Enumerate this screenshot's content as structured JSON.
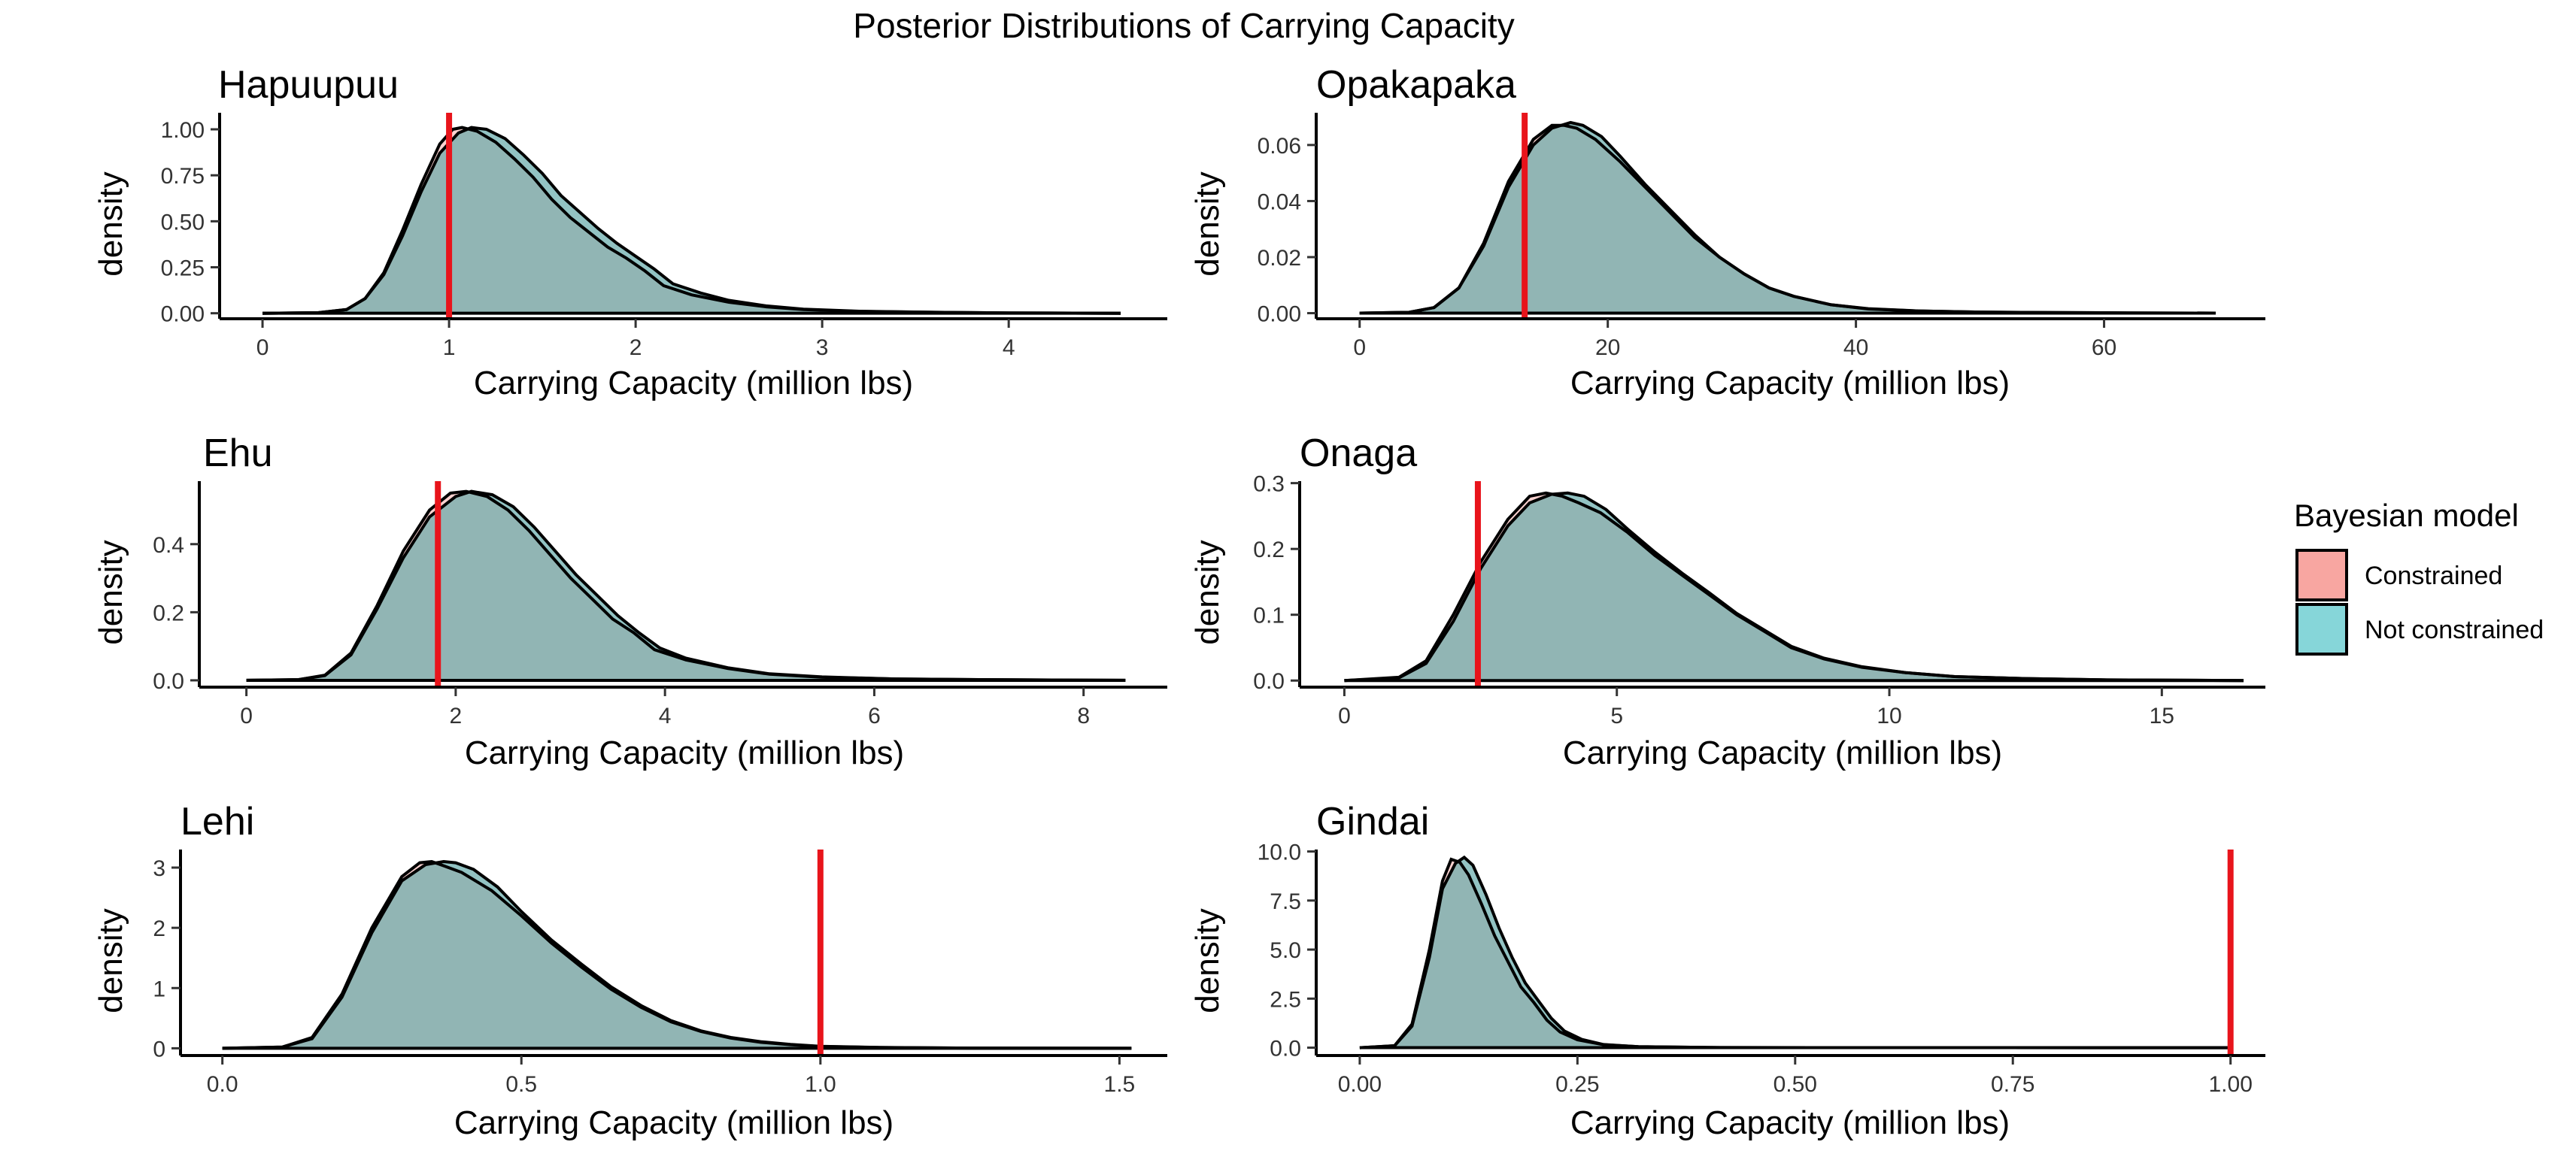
{
  "title": "Posterior Distributions of Carrying Capacity",
  "legend": {
    "title": "Bayesian model",
    "items": [
      {
        "label": "Constrained",
        "color": "#F8A6A1"
      },
      {
        "label": "Not constrained",
        "color": "#86D6D9"
      }
    ]
  },
  "colors": {
    "overlap_fill": "#86B1B0",
    "reference_line": "#E8141B",
    "curve": "#000000"
  },
  "chart_data": [
    {
      "type": "area",
      "title": "Hapuupuu",
      "xlabel": "Carrying Capacity (million lbs)",
      "ylabel": "density",
      "xlim": [
        -0.23,
        4.85
      ],
      "ylim": [
        -0.03,
        1.09
      ],
      "xticks": [
        0,
        1,
        2,
        3,
        4
      ],
      "xtick_labels": [
        "0",
        "1",
        "2",
        "3",
        "4"
      ],
      "yticks": [
        0,
        0.25,
        0.5,
        0.75,
        1.0
      ],
      "ytick_labels": [
        "0.00",
        "0.25",
        "0.50",
        "0.75",
        "1.00"
      ],
      "reference_line": 1.0,
      "series": [
        {
          "name": "Constrained",
          "x": [
            0,
            0.3,
            0.45,
            0.55,
            0.65,
            0.75,
            0.85,
            0.95,
            1.02,
            1.07,
            1.15,
            1.25,
            1.35,
            1.45,
            1.55,
            1.65,
            1.75,
            1.85,
            1.95,
            2.05,
            2.15,
            2.3,
            2.5,
            2.7,
            2.9,
            3.2,
            3.6,
            4.0,
            4.6
          ],
          "y": [
            0,
            0.003,
            0.02,
            0.08,
            0.22,
            0.45,
            0.7,
            0.92,
            1.0,
            1.01,
            0.99,
            0.93,
            0.84,
            0.74,
            0.62,
            0.52,
            0.44,
            0.36,
            0.3,
            0.23,
            0.15,
            0.1,
            0.06,
            0.035,
            0.02,
            0.01,
            0.005,
            0.002,
            0
          ]
        },
        {
          "name": "Not constrained",
          "x": [
            0,
            0.3,
            0.45,
            0.55,
            0.65,
            0.75,
            0.85,
            0.95,
            1.05,
            1.12,
            1.2,
            1.3,
            1.4,
            1.5,
            1.6,
            1.7,
            1.8,
            1.9,
            2.0,
            2.1,
            2.2,
            2.35,
            2.5,
            2.7,
            2.9,
            3.2,
            3.6,
            4.0,
            4.6
          ],
          "y": [
            0,
            0.003,
            0.02,
            0.08,
            0.21,
            0.42,
            0.66,
            0.87,
            0.98,
            1.01,
            1.0,
            0.95,
            0.86,
            0.76,
            0.64,
            0.55,
            0.46,
            0.38,
            0.31,
            0.24,
            0.16,
            0.11,
            0.07,
            0.04,
            0.022,
            0.011,
            0.005,
            0.002,
            0
          ]
        }
      ]
    },
    {
      "type": "area",
      "title": "Opakapaka",
      "xlabel": "Carrying Capacity (million lbs)",
      "ylabel": "density",
      "xlim": [
        -3.5,
        73
      ],
      "ylim": [
        -0.002,
        0.0715
      ],
      "xticks": [
        0,
        20,
        40,
        60
      ],
      "xtick_labels": [
        "0",
        "20",
        "40",
        "60"
      ],
      "yticks": [
        0,
        0.02,
        0.04,
        0.06
      ],
      "ytick_labels": [
        "0.00",
        "0.02",
        "0.04",
        "0.06"
      ],
      "reference_line": 13.3,
      "series": [
        {
          "name": "Constrained",
          "x": [
            0,
            4,
            6,
            8,
            10,
            12,
            14,
            15.5,
            16.5,
            17.5,
            19,
            21,
            23,
            25,
            27,
            29,
            31,
            33,
            35,
            38,
            41,
            45,
            50,
            56,
            62,
            69
          ],
          "y": [
            0,
            0.0003,
            0.002,
            0.009,
            0.025,
            0.047,
            0.062,
            0.067,
            0.067,
            0.066,
            0.062,
            0.054,
            0.045,
            0.036,
            0.027,
            0.02,
            0.014,
            0.009,
            0.006,
            0.003,
            0.0015,
            0.0008,
            0.0004,
            0.0002,
            0.0001,
            0
          ]
        },
        {
          "name": "Not constrained",
          "x": [
            0,
            4,
            6,
            8,
            10,
            12,
            14,
            15.5,
            17,
            18,
            19.5,
            21,
            23,
            25,
            27,
            29,
            31,
            33,
            35,
            38,
            41,
            45,
            50,
            56,
            62,
            69
          ],
          "y": [
            0,
            0.0003,
            0.002,
            0.009,
            0.024,
            0.045,
            0.06,
            0.066,
            0.068,
            0.067,
            0.063,
            0.056,
            0.046,
            0.037,
            0.028,
            0.02,
            0.014,
            0.009,
            0.006,
            0.003,
            0.0016,
            0.0008,
            0.0004,
            0.0002,
            0.0001,
            0
          ]
        }
      ]
    },
    {
      "type": "area",
      "title": "Ehu",
      "xlabel": "Carrying Capacity (million lbs)",
      "ylabel": "density",
      "xlim": [
        -0.45,
        8.8
      ],
      "ylim": [
        -0.02,
        0.585
      ],
      "xticks": [
        0,
        2,
        4,
        6,
        8
      ],
      "xtick_labels": [
        "0",
        "2",
        "4",
        "6",
        "8"
      ],
      "yticks": [
        0,
        0.2,
        0.4
      ],
      "ytick_labels": [
        "0.0",
        "0.2",
        "0.4"
      ],
      "reference_line": 1.83,
      "series": [
        {
          "name": "Constrained",
          "x": [
            0,
            0.5,
            0.75,
            1.0,
            1.25,
            1.5,
            1.75,
            1.95,
            2.1,
            2.3,
            2.5,
            2.7,
            2.9,
            3.1,
            3.3,
            3.5,
            3.7,
            3.9,
            4.2,
            4.6,
            5.0,
            5.5,
            6.2,
            7.0,
            8.4
          ],
          "y": [
            0,
            0.002,
            0.015,
            0.08,
            0.22,
            0.38,
            0.5,
            0.55,
            0.555,
            0.54,
            0.5,
            0.44,
            0.37,
            0.3,
            0.24,
            0.18,
            0.14,
            0.09,
            0.06,
            0.035,
            0.018,
            0.009,
            0.004,
            0.002,
            0
          ]
        },
        {
          "name": "Not constrained",
          "x": [
            0,
            0.5,
            0.75,
            1.0,
            1.25,
            1.5,
            1.75,
            2.0,
            2.15,
            2.35,
            2.55,
            2.75,
            2.95,
            3.15,
            3.35,
            3.55,
            3.75,
            3.95,
            4.2,
            4.6,
            5.0,
            5.5,
            6.2,
            7.0,
            8.4
          ],
          "y": [
            0,
            0.002,
            0.014,
            0.075,
            0.21,
            0.36,
            0.48,
            0.54,
            0.555,
            0.545,
            0.51,
            0.45,
            0.38,
            0.31,
            0.25,
            0.19,
            0.14,
            0.095,
            0.065,
            0.037,
            0.019,
            0.01,
            0.004,
            0.002,
            0
          ]
        }
      ]
    },
    {
      "type": "area",
      "title": "Onaga",
      "xlabel": "Carrying Capacity (million lbs)",
      "ylabel": "density",
      "xlim": [
        -0.82,
        16.9
      ],
      "ylim": [
        -0.01,
        0.303
      ],
      "xticks": [
        0,
        5,
        10,
        15
      ],
      "xtick_labels": [
        "0",
        "5",
        "10",
        "15"
      ],
      "yticks": [
        0,
        0.1,
        0.2,
        0.3
      ],
      "ytick_labels": [
        "0.0",
        "0.1",
        "0.2",
        "0.3"
      ],
      "reference_line": 2.45,
      "series": [
        {
          "name": "Constrained",
          "x": [
            0,
            1.0,
            1.5,
            2.0,
            2.5,
            3.0,
            3.4,
            3.7,
            4.0,
            4.3,
            4.7,
            5.2,
            5.7,
            6.2,
            6.7,
            7.2,
            7.7,
            8.2,
            8.8,
            9.5,
            10.3,
            11.2,
            12.5,
            14.0,
            16.5
          ],
          "y": [
            0,
            0.005,
            0.03,
            0.1,
            0.18,
            0.245,
            0.28,
            0.285,
            0.28,
            0.27,
            0.255,
            0.225,
            0.19,
            0.16,
            0.13,
            0.1,
            0.075,
            0.05,
            0.033,
            0.02,
            0.012,
            0.006,
            0.003,
            0.001,
            0
          ]
        },
        {
          "name": "Not constrained",
          "x": [
            0,
            1.0,
            1.5,
            2.0,
            2.5,
            3.0,
            3.4,
            3.8,
            4.1,
            4.4,
            4.8,
            5.2,
            5.7,
            6.2,
            6.7,
            7.2,
            7.7,
            8.2,
            8.8,
            9.5,
            10.3,
            11.2,
            12.5,
            14.0,
            16.5
          ],
          "y": [
            0,
            0.004,
            0.026,
            0.09,
            0.17,
            0.235,
            0.27,
            0.283,
            0.285,
            0.28,
            0.26,
            0.23,
            0.195,
            0.163,
            0.133,
            0.102,
            0.077,
            0.052,
            0.034,
            0.021,
            0.012,
            0.006,
            0.003,
            0.001,
            0
          ]
        }
      ]
    },
    {
      "type": "area",
      "title": "Lehi",
      "xlabel": "Carrying Capacity (million lbs)",
      "ylabel": "density",
      "xlim": [
        -0.07,
        1.58
      ],
      "ylim": [
        -0.12,
        3.3
      ],
      "xticks": [
        0,
        0.5,
        1.0,
        1.5
      ],
      "xtick_labels": [
        "0.0",
        "0.5",
        "1.0",
        "1.5"
      ],
      "yticks": [
        0,
        1,
        2,
        3
      ],
      "ytick_labels": [
        "0",
        "1",
        "2",
        "3"
      ],
      "reference_line": 1.0,
      "series": [
        {
          "name": "Constrained",
          "x": [
            0,
            0.1,
            0.15,
            0.2,
            0.25,
            0.3,
            0.33,
            0.35,
            0.37,
            0.4,
            0.45,
            0.5,
            0.55,
            0.6,
            0.65,
            0.7,
            0.75,
            0.8,
            0.85,
            0.9,
            0.95,
            1.0,
            1.1,
            1.25,
            1.52
          ],
          "y": [
            0,
            0.02,
            0.18,
            0.9,
            2.0,
            2.85,
            3.08,
            3.1,
            3.03,
            2.92,
            2.62,
            2.2,
            1.75,
            1.35,
            0.98,
            0.68,
            0.44,
            0.28,
            0.17,
            0.1,
            0.06,
            0.03,
            0.012,
            0.004,
            0
          ]
        },
        {
          "name": "Not constrained",
          "x": [
            0,
            0.1,
            0.15,
            0.2,
            0.25,
            0.3,
            0.34,
            0.37,
            0.39,
            0.42,
            0.46,
            0.5,
            0.55,
            0.6,
            0.65,
            0.7,
            0.75,
            0.8,
            0.85,
            0.9,
            0.95,
            1.0,
            1.1,
            1.25,
            1.52
          ],
          "y": [
            0,
            0.02,
            0.16,
            0.85,
            1.92,
            2.78,
            3.05,
            3.1,
            3.08,
            2.97,
            2.68,
            2.27,
            1.8,
            1.4,
            1.02,
            0.71,
            0.46,
            0.29,
            0.18,
            0.11,
            0.065,
            0.032,
            0.013,
            0.004,
            0
          ]
        }
      ]
    },
    {
      "type": "area",
      "title": "Gindai",
      "xlabel": "Carrying Capacity (million lbs)",
      "ylabel": "density",
      "xlim": [
        -0.05,
        1.04
      ],
      "ylim": [
        -0.4,
        10.1
      ],
      "xticks": [
        0,
        0.25,
        0.5,
        0.75,
        1.0
      ],
      "xtick_labels": [
        "0.00",
        "0.25",
        "0.50",
        "0.75",
        "1.00"
      ],
      "yticks": [
        0,
        2.5,
        5,
        7.5,
        10
      ],
      "ytick_labels": [
        "0.0",
        "2.5",
        "5.0",
        "7.5",
        "10.0"
      ],
      "reference_line": 1.0,
      "series": [
        {
          "name": "Constrained",
          "x": [
            0,
            0.04,
            0.06,
            0.08,
            0.095,
            0.105,
            0.115,
            0.125,
            0.14,
            0.155,
            0.17,
            0.185,
            0.2,
            0.215,
            0.23,
            0.25,
            0.28,
            0.32,
            0.4,
            0.55,
            1.0
          ],
          "y": [
            0,
            0.1,
            1.2,
            5.0,
            8.5,
            9.6,
            9.45,
            8.8,
            7.3,
            5.7,
            4.4,
            3.1,
            2.3,
            1.4,
            0.8,
            0.4,
            0.15,
            0.05,
            0.01,
            0.002,
            0
          ]
        },
        {
          "name": "Not constrained",
          "x": [
            0,
            0.04,
            0.06,
            0.08,
            0.095,
            0.11,
            0.12,
            0.13,
            0.145,
            0.16,
            0.175,
            0.19,
            0.205,
            0.22,
            0.235,
            0.255,
            0.28,
            0.32,
            0.4,
            0.55,
            1.0
          ],
          "y": [
            0,
            0.1,
            1.1,
            4.6,
            8.1,
            9.4,
            9.7,
            9.3,
            7.8,
            6.1,
            4.6,
            3.3,
            2.4,
            1.5,
            0.85,
            0.42,
            0.16,
            0.05,
            0.01,
            0.002,
            0
          ]
        }
      ]
    }
  ]
}
